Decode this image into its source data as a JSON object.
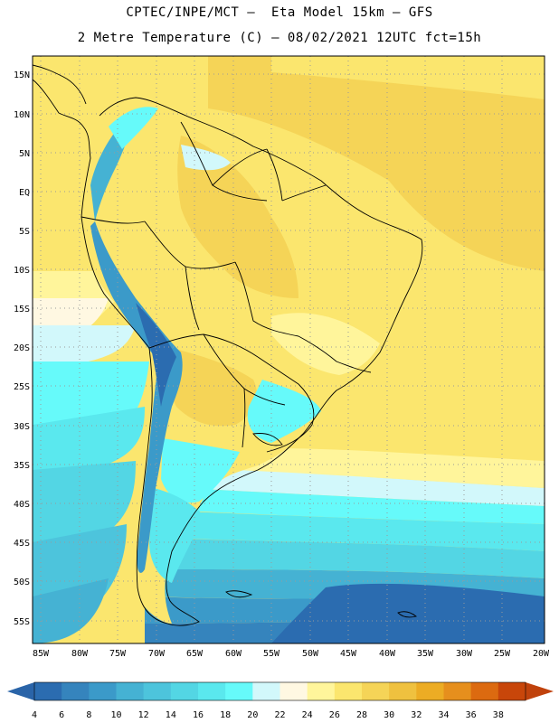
{
  "header": {
    "line1": "CPTEC/INPE/MCT –  Eta Model 15km – GFS",
    "line2": "2 Metre Temperature (C) – 08/02/2021 12UTC fct=15h"
  },
  "map": {
    "lat_labels": [
      "15N",
      "10N",
      "5N",
      "EQ",
      "5S",
      "10S",
      "15S",
      "20S",
      "25S",
      "30S",
      "35S",
      "40S",
      "45S",
      "50S",
      "55S"
    ],
    "lon_labels": [
      "85W",
      "80W",
      "75W",
      "70W",
      "65W",
      "60W",
      "55W",
      "50W",
      "45W",
      "40W",
      "35W",
      "30W",
      "25W",
      "20W"
    ]
  },
  "colorbar": {
    "labels": [
      "4",
      "6",
      "8",
      "10",
      "12",
      "14",
      "16",
      "18",
      "20",
      "22",
      "24",
      "26",
      "28",
      "30",
      "32",
      "34",
      "36",
      "38"
    ],
    "colors": [
      "#2b6cb0",
      "#3584bd",
      "#3b9ac9",
      "#45b2d3",
      "#4dc4dc",
      "#53d6e4",
      "#5ae8ee",
      "#66fafa",
      "#d2f8fb",
      "#fff8e2",
      "#fff59b",
      "#fbe66e",
      "#f5d457",
      "#efc13f",
      "#ecac24",
      "#e68f1d",
      "#dc6a10",
      "#c8460a"
    ],
    "arrow_left": "#2a64a8",
    "arrow_right": "#c0420c"
  }
}
